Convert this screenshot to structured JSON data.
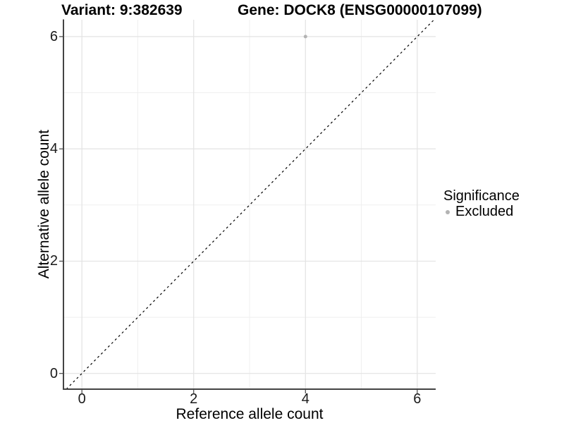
{
  "titles": {
    "variant": "Variant: 9:382639",
    "gene": "Gene: DOCK8 (ENSG00000107099)"
  },
  "chart_data": {
    "type": "scatter",
    "title": "Variant: 9:382639   Gene: DOCK8 (ENSG00000107099)",
    "xlabel": "Reference allele count",
    "ylabel": "Alternative allele count",
    "xlim": [
      -0.33,
      6.33
    ],
    "ylim": [
      -0.28,
      6.3
    ],
    "x_ticks": [
      0,
      2,
      4,
      6
    ],
    "y_ticks": [
      0,
      2,
      4,
      6
    ],
    "x_minor_ticks": [
      1,
      3,
      5
    ],
    "y_minor_ticks": [
      1,
      3,
      5
    ],
    "grid": true,
    "points": [
      {
        "x": 4,
        "y": 6,
        "series": "Excluded"
      }
    ],
    "reference_line": {
      "slope": 1,
      "intercept": 0,
      "style": "dashed"
    },
    "legend": {
      "title": "Significance",
      "position": "right",
      "entries": [
        {
          "label": "Excluded",
          "color": "#b3b3b3"
        }
      ]
    }
  },
  "colors": {
    "background": "#ffffff",
    "text": "#000000",
    "tick_text": "#1a1a1a",
    "axis_line": "#444444",
    "grid_major": "#e3e3e3",
    "grid_minor": "#efefef",
    "point": "#b3b3b3",
    "reference_line": "#000000"
  }
}
